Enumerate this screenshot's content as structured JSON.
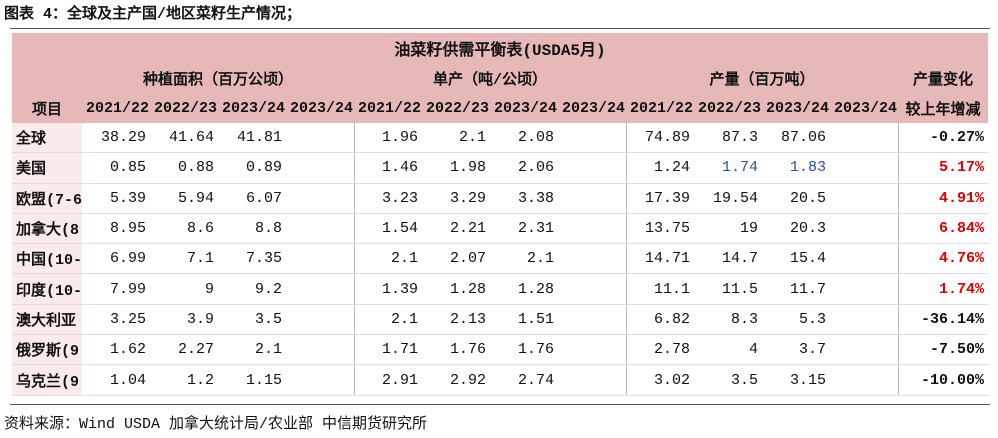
{
  "caption": "图表 4：全球及主产国/地区菜籽生产情况；",
  "table": {
    "title": "油菜籽供需平衡表(USDA5月)",
    "groups": [
      "种植面积（百万公顷）",
      "单产（吨/公顷）",
      "产量（百万吨）",
      "产量变化"
    ],
    "columns": [
      "项目",
      "2021/22",
      "2022/23",
      "2023/24",
      "2023/24",
      "2021/22",
      "2022/23",
      "2023/24",
      "2023/24",
      "2021/22",
      "2022/23",
      "2023/24",
      "2023/24",
      "较上年增减"
    ],
    "rows": [
      [
        "全球",
        38.29,
        41.64,
        41.81,
        null,
        1.96,
        2.1,
        2.08,
        null,
        74.89,
        87.3,
        87.06,
        null,
        "-0.27%"
      ],
      [
        "美国",
        0.85,
        0.88,
        0.89,
        null,
        1.46,
        1.98,
        2.06,
        null,
        1.24,
        1.74,
        1.83,
        null,
        "5.17%"
      ],
      [
        "欧盟(7-6",
        5.39,
        5.94,
        6.07,
        null,
        3.23,
        3.29,
        3.38,
        null,
        17.39,
        19.54,
        20.5,
        null,
        "4.91%"
      ],
      [
        "加拿大(8",
        8.95,
        8.6,
        8.8,
        null,
        1.54,
        2.21,
        2.31,
        null,
        13.75,
        19,
        20.3,
        null,
        "6.84%"
      ],
      [
        "中国(10-",
        6.99,
        7.1,
        7.35,
        null,
        2.1,
        2.07,
        2.1,
        null,
        14.71,
        14.7,
        15.4,
        null,
        "4.76%"
      ],
      [
        "印度(10-",
        7.99,
        9,
        9.2,
        null,
        1.39,
        1.28,
        1.28,
        null,
        11.1,
        11.5,
        11.7,
        null,
        "1.74%"
      ],
      [
        "澳大利亚",
        3.25,
        3.9,
        3.5,
        null,
        2.1,
        2.13,
        1.51,
        null,
        6.82,
        8.3,
        5.3,
        null,
        "-36.14%"
      ],
      [
        "俄罗斯(9",
        1.62,
        2.27,
        2.1,
        null,
        1.71,
        1.76,
        1.76,
        null,
        2.78,
        4,
        3.7,
        null,
        "-7.50%"
      ],
      [
        "乌克兰(9",
        1.04,
        1.2,
        1.15,
        null,
        2.91,
        2.92,
        2.74,
        null,
        3.02,
        3.5,
        3.15,
        null,
        "-10.00%"
      ]
    ]
  },
  "source": "资料来源：Wind USDA 加拿大统计局/农业部 中信期货研究所"
}
